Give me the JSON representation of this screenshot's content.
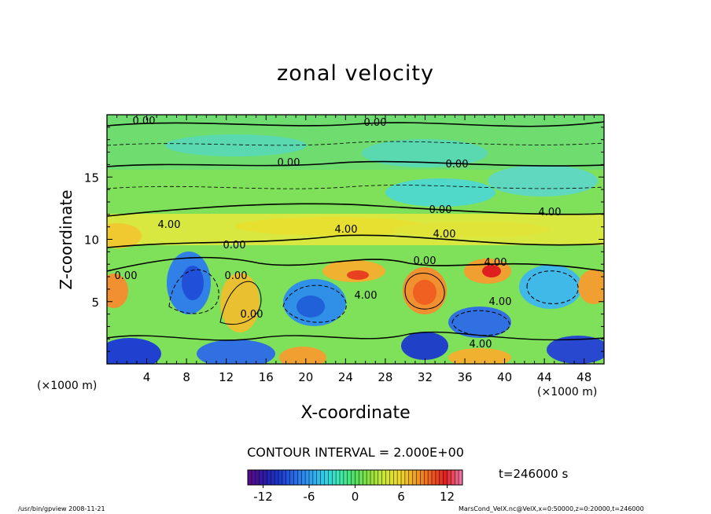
{
  "chart_data": {
    "type": "heatmap",
    "title": "zonal velocity",
    "xlabel": "X-coordinate",
    "ylabel": "Z-coordinate",
    "x_unit": "(×1000 m)",
    "x_unit_right": "(×1000 m)",
    "xlim": [
      0,
      50
    ],
    "ylim": [
      0,
      20
    ],
    "x_ticks": [
      4,
      8,
      12,
      16,
      20,
      24,
      28,
      32,
      36,
      40,
      44,
      48
    ],
    "y_ticks": [
      5,
      10,
      15
    ],
    "contour_interval_text": "CONTOUR INTERVAL = 2.000E+00",
    "contour_labels": [
      "0.00",
      "0.00",
      "0.00",
      "0.00",
      "0.00",
      "4.00",
      "0.00",
      "4.00",
      "0.00",
      "4.00",
      "4.00",
      "0.00",
      "4.00",
      "4.00",
      "0.00",
      "4.00",
      "0.00",
      "4.00"
    ],
    "colorbar": {
      "min": -14,
      "max": 14,
      "ticks": [
        -12,
        -6,
        0,
        6,
        12
      ],
      "colors": [
        "#5a0a8a",
        "#2a1aa8",
        "#1a3ad0",
        "#2a6ae8",
        "#30a0f0",
        "#30d0e8",
        "#40e8b0",
        "#50e060",
        "#90e040",
        "#d0e830",
        "#f0d830",
        "#f0a020",
        "#f06020",
        "#e02020",
        "#f070a0"
      ]
    },
    "time_label": "t=246000 s",
    "footer_left": "/usr/bin/gpview   2008-11-21",
    "footer_right": "MarsCond_VelX.nc@VelX,x=0:50000,z=0:20000,t=246000"
  }
}
